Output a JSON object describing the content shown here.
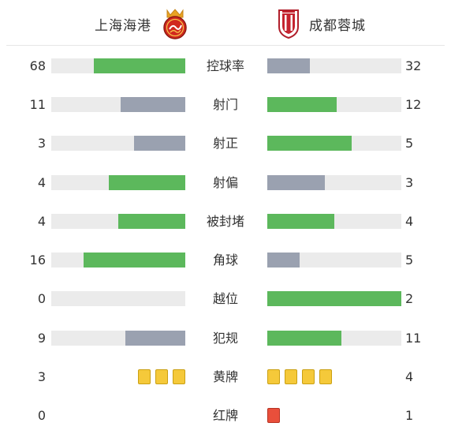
{
  "home": {
    "name": "上海海港"
  },
  "away": {
    "name": "成都蓉城"
  },
  "colors": {
    "green": "#5cb85c",
    "gray": "#9aa1b0",
    "track": "#ebebeb",
    "yellow": "#f5c93a",
    "red": "#e94f3b"
  },
  "stats": [
    {
      "label": "控球率",
      "home": 68,
      "away": 32,
      "home_ratio": 0.68,
      "away_ratio": 0.32,
      "winner": "home",
      "kind": "bar"
    },
    {
      "label": "射门",
      "home": 11,
      "away": 12,
      "home_ratio": 0.48,
      "away_ratio": 0.52,
      "winner": "away",
      "kind": "bar"
    },
    {
      "label": "射正",
      "home": 3,
      "away": 5,
      "home_ratio": 0.38,
      "away_ratio": 0.63,
      "winner": "away",
      "kind": "bar"
    },
    {
      "label": "射偏",
      "home": 4,
      "away": 3,
      "home_ratio": 0.57,
      "away_ratio": 0.43,
      "winner": "home",
      "kind": "bar"
    },
    {
      "label": "被封堵",
      "home": 4,
      "away": 4,
      "home_ratio": 0.5,
      "away_ratio": 0.5,
      "winner": "both",
      "kind": "bar"
    },
    {
      "label": "角球",
      "home": 16,
      "away": 5,
      "home_ratio": 0.76,
      "away_ratio": 0.24,
      "winner": "home",
      "kind": "bar"
    },
    {
      "label": "越位",
      "home": 0,
      "away": 2,
      "home_ratio": 0.0,
      "away_ratio": 1.0,
      "winner": "away",
      "kind": "bar"
    },
    {
      "label": "犯规",
      "home": 9,
      "away": 11,
      "home_ratio": 0.45,
      "away_ratio": 0.55,
      "winner": "away",
      "kind": "bar"
    },
    {
      "label": "黄牌",
      "home": 3,
      "away": 4,
      "kind": "yellow-cards"
    },
    {
      "label": "红牌",
      "home": 0,
      "away": 1,
      "kind": "red-cards"
    }
  ]
}
